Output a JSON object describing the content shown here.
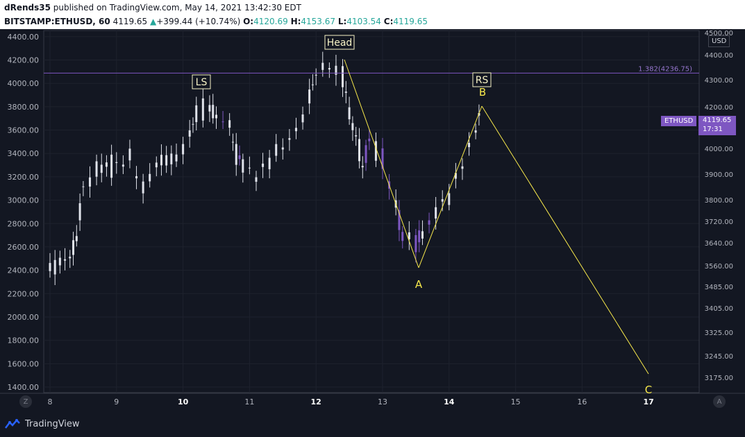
{
  "header": {
    "publisher": "dRends35",
    "publisher_suffix": "published on TradingView.com, May 14, 2021 13:42:30 EDT"
  },
  "ohlc": {
    "symbol": "BITSTAMP:ETHUSD, 60",
    "last": "4119.65",
    "change_arrow": "▲",
    "change": "+399.44 (+10.74%)",
    "o_label": "O:",
    "o": "4120.69",
    "h_label": "H:",
    "h": "4153.67",
    "l_label": "L:",
    "l": "4103.54",
    "c_label": "C:",
    "c": "4119.65"
  },
  "chart": {
    "usd_badge": "USD",
    "ticker_tag": "ETHUSD",
    "price_tag_value": "4119.65",
    "price_tag_time": "17:31",
    "fib_label": "1.382(4236.75)",
    "annotations": {
      "head": "Head",
      "ls": "LS",
      "rs": "RS",
      "a": "A",
      "b": "B",
      "c": "C"
    },
    "left_axis_ticks": [
      "4400.00",
      "4200.00",
      "4000.00",
      "3800.00",
      "3600.00",
      "3400.00",
      "3200.00",
      "3000.00",
      "2800.00",
      "2600.00",
      "2400.00",
      "2200.00",
      "2000.00",
      "1800.00",
      "1600.00",
      "1400.00"
    ],
    "right_axis_ticks": [
      "4500.00",
      "4400.00",
      "4300.00",
      "4200.00",
      "4000.00",
      "3900.00",
      "3800.00",
      "3720.00",
      "3640.00",
      "3560.00",
      "3485.00",
      "3405.00",
      "3325.00",
      "3245.00",
      "3175.00"
    ],
    "x_ticks": [
      "8",
      "9",
      "10",
      "11",
      "12",
      "13",
      "14",
      "15",
      "16",
      "17"
    ],
    "bold_x_ticks": [
      "10",
      "12",
      "14",
      "17"
    ],
    "colors": {
      "background": "#131722",
      "candle": "#e0e3eb",
      "candle_highlight": "#7e57c2",
      "pattern_line": "#f7e84b",
      "fib_line": "#7e57c2",
      "label_box": "#f7f3c6"
    }
  },
  "chart_data": {
    "type": "candlestick",
    "ylim": [
      1400,
      4500
    ],
    "x_dates": [
      "8",
      "9",
      "10",
      "11",
      "12",
      "13",
      "14",
      "15",
      "16",
      "17"
    ],
    "pattern_points": [
      {
        "label": "Head",
        "x": "12.4",
        "y": 4230
      },
      {
        "label": "A",
        "x": "13.5",
        "y": 2550
      },
      {
        "label": "B",
        "x": "14.5",
        "y": 3830
      },
      {
        "label": "C",
        "x": "17.0",
        "y": 1530
      }
    ],
    "fib_level": 4236.75,
    "last_price": 4119.65
  },
  "footer": {
    "brand": "TradingView",
    "left_btn": "Z",
    "right_btn": "A"
  }
}
